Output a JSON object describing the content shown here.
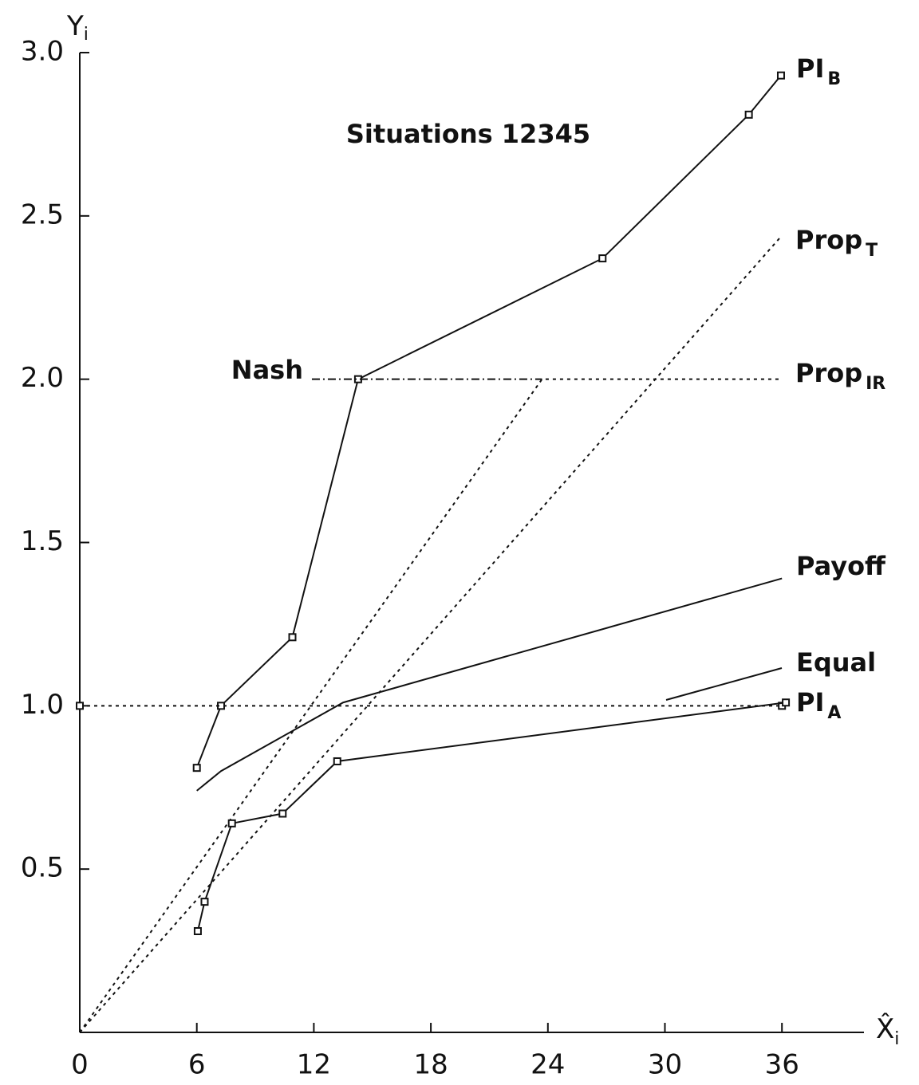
{
  "chart_data": {
    "type": "line",
    "title": "Situations 12345",
    "xlabel": "X̂",
    "xlabel_sub": "i",
    "ylabel": "Y",
    "ylabel_sub": "i",
    "xlim": [
      0,
      40
    ],
    "ylim": [
      0,
      3.0
    ],
    "xticks": [
      0,
      6,
      12,
      18,
      24,
      30,
      36
    ],
    "yticks": [
      0.5,
      {
        "value": 1,
        "label": "1.0"
      },
      1.5,
      {
        "value": 2,
        "label": "2.0"
      },
      2.5,
      {
        "value": 3,
        "label": "3.0"
      }
    ],
    "series": [
      {
        "name": "PI",
        "subscript": "B",
        "color": "#111",
        "dash": "solid",
        "markers": true,
        "x": [
          6,
          7.24,
          10.9,
          14.27,
          26.8,
          34.3,
          35.95
        ],
        "values": [
          0.81,
          1.0,
          1.21,
          2.0,
          2.37,
          2.81,
          2.93
        ]
      },
      {
        "name": "Prop",
        "subscript": "T",
        "color": "#111",
        "dash": "dotted",
        "markers": false,
        "x": [
          0,
          36
        ],
        "values": [
          0,
          2.44
        ]
      },
      {
        "name": "Prop",
        "subscript": "IR",
        "color": "#111",
        "dash": "dotted",
        "markers": false,
        "x": [
          0,
          23.7,
          36
        ],
        "values": [
          0,
          2.0,
          2.0
        ]
      },
      {
        "name": "Nash",
        "color": "#111",
        "dash": "dashdot",
        "markers": false,
        "x": [
          11.9,
          23.7
        ],
        "values": [
          2.0,
          2.0
        ]
      },
      {
        "name": "Payoff",
        "color": "#111",
        "dash": "solid",
        "markers": false,
        "x": [
          6,
          7.24,
          13.5,
          36
        ],
        "values": [
          0.74,
          0.8,
          1.01,
          1.39
        ]
      },
      {
        "name": "Equal",
        "color": "#111",
        "dash": "dotted",
        "markers": true,
        "x": [
          0,
          36
        ],
        "values": [
          1.0,
          1.0
        ]
      },
      {
        "name": "PI",
        "subscript": "A",
        "color": "#111",
        "dash": "solid",
        "markers": true,
        "x": [
          6.05,
          6.4,
          7.8,
          10.4,
          13.2,
          36.2
        ],
        "values": [
          0.31,
          0.4,
          0.64,
          0.67,
          0.83,
          1.01
        ]
      }
    ]
  }
}
